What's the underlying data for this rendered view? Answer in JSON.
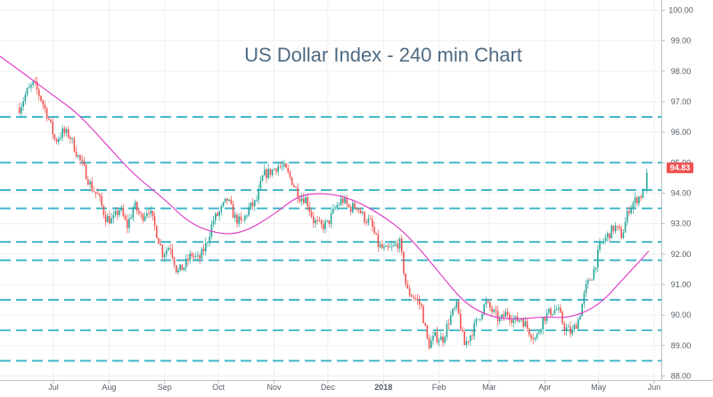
{
  "chart_data": {
    "type": "candlestick",
    "title": "US Dollar Index - 240 min Chart",
    "xlabel": "",
    "ylabel": "",
    "ylim": [
      88.0,
      100.0
    ],
    "y_ticks": [
      "88.00",
      "89.00",
      "90.00",
      "91.00",
      "92.00",
      "93.00",
      "94.00",
      "95.00",
      "96.00",
      "97.00",
      "98.00",
      "99.00",
      "100.00"
    ],
    "x_ticks": [
      {
        "label": "Jul",
        "date": "2017-07-01"
      },
      {
        "label": "Aug",
        "date": "2017-08-01"
      },
      {
        "label": "Sep",
        "date": "2017-09-01"
      },
      {
        "label": "Oct",
        "date": "2017-10-01"
      },
      {
        "label": "Nov",
        "date": "2017-11-01"
      },
      {
        "label": "Dec",
        "date": "2017-12-01"
      },
      {
        "label": "2018",
        "date": "2018-01-01"
      },
      {
        "label": "Feb",
        "date": "2018-02-01"
      },
      {
        "label": "Mar",
        "date": "2018-03-01"
      },
      {
        "label": "Apr",
        "date": "2018-04-01"
      },
      {
        "label": "May",
        "date": "2018-05-01"
      },
      {
        "label": "Jun",
        "date": "2018-06-01"
      }
    ],
    "last_price": "94.83",
    "colors": {
      "up": "#26a69a",
      "down": "#ef5350",
      "ma": "#e040c8",
      "level": "#35b2c8",
      "price_tag": "#ef5350"
    },
    "horizontal_levels": [
      96.5,
      95.0,
      94.1,
      93.5,
      92.4,
      91.8,
      90.5,
      89.5,
      88.5
    ],
    "price_path": [
      {
        "x": "2017-06-12",
        "y": 96.8
      },
      {
        "x": "2017-06-16",
        "y": 97.3
      },
      {
        "x": "2017-06-20",
        "y": 97.6
      },
      {
        "x": "2017-06-24",
        "y": 97.1
      },
      {
        "x": "2017-06-28",
        "y": 96.5
      },
      {
        "x": "2017-07-02",
        "y": 95.7
      },
      {
        "x": "2017-07-06",
        "y": 96.0
      },
      {
        "x": "2017-07-10",
        "y": 95.9
      },
      {
        "x": "2017-07-14",
        "y": 95.3
      },
      {
        "x": "2017-07-18",
        "y": 94.8
      },
      {
        "x": "2017-07-22",
        "y": 94.2
      },
      {
        "x": "2017-07-26",
        "y": 93.9
      },
      {
        "x": "2017-07-30",
        "y": 93.2
      },
      {
        "x": "2017-08-03",
        "y": 93.1
      },
      {
        "x": "2017-08-07",
        "y": 93.5
      },
      {
        "x": "2017-08-11",
        "y": 92.9
      },
      {
        "x": "2017-08-15",
        "y": 93.6
      },
      {
        "x": "2017-08-19",
        "y": 93.2
      },
      {
        "x": "2017-08-23",
        "y": 93.5
      },
      {
        "x": "2017-08-27",
        "y": 92.8
      },
      {
        "x": "2017-08-31",
        "y": 92.0
      },
      {
        "x": "2017-09-04",
        "y": 92.3
      },
      {
        "x": "2017-09-08",
        "y": 91.4
      },
      {
        "x": "2017-09-12",
        "y": 91.6
      },
      {
        "x": "2017-09-16",
        "y": 92.0
      },
      {
        "x": "2017-09-20",
        "y": 91.8
      },
      {
        "x": "2017-09-24",
        "y": 92.3
      },
      {
        "x": "2017-09-28",
        "y": 93.1
      },
      {
        "x": "2017-10-02",
        "y": 93.4
      },
      {
        "x": "2017-10-06",
        "y": 93.8
      },
      {
        "x": "2017-10-10",
        "y": 93.2
      },
      {
        "x": "2017-10-14",
        "y": 93.0
      },
      {
        "x": "2017-10-18",
        "y": 93.5
      },
      {
        "x": "2017-10-22",
        "y": 93.7
      },
      {
        "x": "2017-10-26",
        "y": 94.6
      },
      {
        "x": "2017-10-30",
        "y": 94.7
      },
      {
        "x": "2017-11-03",
        "y": 94.9
      },
      {
        "x": "2017-11-07",
        "y": 94.8
      },
      {
        "x": "2017-11-11",
        "y": 94.4
      },
      {
        "x": "2017-11-15",
        "y": 93.9
      },
      {
        "x": "2017-11-19",
        "y": 93.8
      },
      {
        "x": "2017-11-23",
        "y": 93.1
      },
      {
        "x": "2017-11-27",
        "y": 92.9
      },
      {
        "x": "2017-12-01",
        "y": 93.0
      },
      {
        "x": "2017-12-05",
        "y": 93.5
      },
      {
        "x": "2017-12-09",
        "y": 93.8
      },
      {
        "x": "2017-12-13",
        "y": 93.5
      },
      {
        "x": "2017-12-17",
        "y": 93.6
      },
      {
        "x": "2017-12-21",
        "y": 93.2
      },
      {
        "x": "2017-12-25",
        "y": 93.0
      },
      {
        "x": "2017-12-29",
        "y": 92.3
      },
      {
        "x": "2018-01-02",
        "y": 92.1
      },
      {
        "x": "2018-01-06",
        "y": 92.2
      },
      {
        "x": "2018-01-10",
        "y": 92.4
      },
      {
        "x": "2018-01-14",
        "y": 90.8
      },
      {
        "x": "2018-01-18",
        "y": 90.6
      },
      {
        "x": "2018-01-22",
        "y": 90.3
      },
      {
        "x": "2018-01-26",
        "y": 89.0
      },
      {
        "x": "2018-01-30",
        "y": 89.3
      },
      {
        "x": "2018-02-03",
        "y": 89.2
      },
      {
        "x": "2018-02-07",
        "y": 89.9
      },
      {
        "x": "2018-02-11",
        "y": 90.3
      },
      {
        "x": "2018-02-15",
        "y": 89.0
      },
      {
        "x": "2018-02-19",
        "y": 89.4
      },
      {
        "x": "2018-02-23",
        "y": 89.9
      },
      {
        "x": "2018-02-27",
        "y": 90.4
      },
      {
        "x": "2018-03-03",
        "y": 90.1
      },
      {
        "x": "2018-03-07",
        "y": 89.8
      },
      {
        "x": "2018-03-11",
        "y": 90.1
      },
      {
        "x": "2018-03-15",
        "y": 89.8
      },
      {
        "x": "2018-03-19",
        "y": 89.9
      },
      {
        "x": "2018-03-23",
        "y": 89.5
      },
      {
        "x": "2018-03-27",
        "y": 89.2
      },
      {
        "x": "2018-03-31",
        "y": 89.9
      },
      {
        "x": "2018-04-04",
        "y": 90.1
      },
      {
        "x": "2018-04-08",
        "y": 90.2
      },
      {
        "x": "2018-04-12",
        "y": 89.6
      },
      {
        "x": "2018-04-16",
        "y": 89.4
      },
      {
        "x": "2018-04-20",
        "y": 89.9
      },
      {
        "x": "2018-04-24",
        "y": 90.9
      },
      {
        "x": "2018-04-28",
        "y": 91.4
      },
      {
        "x": "2018-05-02",
        "y": 92.3
      },
      {
        "x": "2018-05-06",
        "y": 92.6
      },
      {
        "x": "2018-05-10",
        "y": 92.9
      },
      {
        "x": "2018-05-14",
        "y": 92.6
      },
      {
        "x": "2018-05-18",
        "y": 93.5
      },
      {
        "x": "2018-05-22",
        "y": 93.8
      },
      {
        "x": "2018-05-26",
        "y": 94.0
      },
      {
        "x": "2018-05-29",
        "y": 94.83
      }
    ],
    "moving_average": [
      {
        "x": "2017-06-01",
        "y": 98.5
      },
      {
        "x": "2017-06-15",
        "y": 97.9
      },
      {
        "x": "2017-07-01",
        "y": 97.2
      },
      {
        "x": "2017-07-15",
        "y": 96.6
      },
      {
        "x": "2017-08-01",
        "y": 95.5
      },
      {
        "x": "2017-08-15",
        "y": 94.6
      },
      {
        "x": "2017-09-01",
        "y": 93.8
      },
      {
        "x": "2017-09-15",
        "y": 93.0
      },
      {
        "x": "2017-10-01",
        "y": 92.65
      },
      {
        "x": "2017-10-15",
        "y": 92.7
      },
      {
        "x": "2017-11-01",
        "y": 93.3
      },
      {
        "x": "2017-11-15",
        "y": 93.95
      },
      {
        "x": "2017-12-01",
        "y": 94.0
      },
      {
        "x": "2017-12-15",
        "y": 93.8
      },
      {
        "x": "2018-01-01",
        "y": 93.25
      },
      {
        "x": "2018-01-15",
        "y": 92.6
      },
      {
        "x": "2018-02-01",
        "y": 91.4
      },
      {
        "x": "2018-02-15",
        "y": 90.4
      },
      {
        "x": "2018-03-01",
        "y": 89.95
      },
      {
        "x": "2018-03-15",
        "y": 89.85
      },
      {
        "x": "2018-04-01",
        "y": 89.95
      },
      {
        "x": "2018-04-15",
        "y": 89.9
      },
      {
        "x": "2018-05-01",
        "y": 90.3
      },
      {
        "x": "2018-05-15",
        "y": 91.2
      },
      {
        "x": "2018-05-29",
        "y": 92.1
      }
    ]
  }
}
